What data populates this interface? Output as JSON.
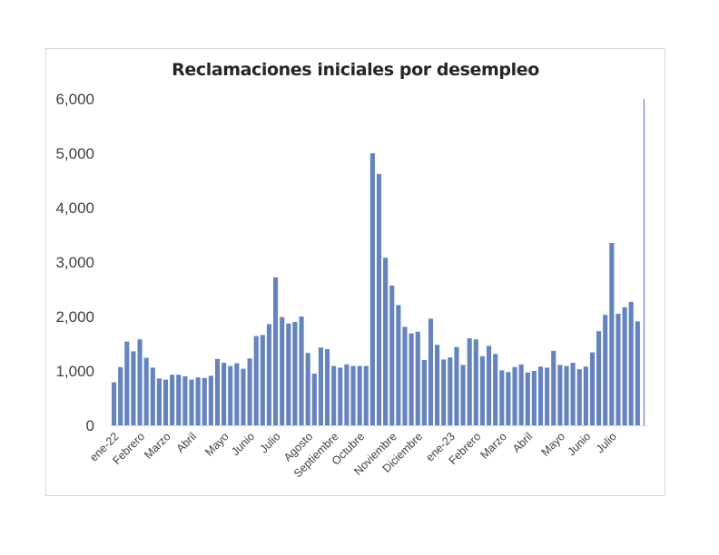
{
  "chart_data": {
    "type": "bar",
    "title": "Reclamaciones iniciales por desempleo",
    "xlabel": "",
    "ylabel": "",
    "ylim": [
      0,
      6000
    ],
    "yticks": [
      "0",
      "1,000",
      "2,000",
      "3,000",
      "4,000",
      "5,000",
      "6,000"
    ],
    "grid": false,
    "legend": "none",
    "bar_color": "#6584be",
    "month_labels": [
      {
        "label": "ene-22",
        "index": 0
      },
      {
        "label": "Febrero",
        "index": 4
      },
      {
        "label": "Marzo",
        "index": 8
      },
      {
        "label": "Abril",
        "index": 12
      },
      {
        "label": "Mayo",
        "index": 17
      },
      {
        "label": "Junio",
        "index": 21
      },
      {
        "label": "Julio",
        "index": 25
      },
      {
        "label": "Agosto",
        "index": 30
      },
      {
        "label": "Septiembre",
        "index": 34
      },
      {
        "label": "Octubre",
        "index": 38
      },
      {
        "label": "Noviembre",
        "index": 43
      },
      {
        "label": "Diciembre",
        "index": 47
      },
      {
        "label": "ene-23",
        "index": 52
      },
      {
        "label": "Febrero",
        "index": 56
      },
      {
        "label": "Marzo",
        "index": 60
      },
      {
        "label": "Abril",
        "index": 64
      },
      {
        "label": "Mayo",
        "index": 69
      },
      {
        "label": "Junio",
        "index": 73
      },
      {
        "label": "Julio",
        "index": 77
      }
    ],
    "values": [
      790,
      1070,
      1540,
      1360,
      1580,
      1240,
      1060,
      860,
      840,
      930,
      930,
      900,
      840,
      880,
      870,
      910,
      1220,
      1150,
      1090,
      1140,
      1040,
      1230,
      1640,
      1660,
      1860,
      2720,
      1990,
      1870,
      1900,
      2000,
      1330,
      950,
      1430,
      1400,
      1090,
      1060,
      1120,
      1090,
      1090,
      1090,
      5000,
      4620,
      3080,
      2570,
      2210,
      1810,
      1690,
      1720,
      1200,
      1960,
      1480,
      1210,
      1250,
      1440,
      1110,
      1600,
      1580,
      1270,
      1460,
      1310,
      1010,
      980,
      1070,
      1120,
      970,
      1000,
      1080,
      1060,
      1370,
      1110,
      1090,
      1150,
      1030,
      1080,
      1340,
      1730,
      2030,
      3350,
      2050,
      2170,
      2270,
      1910,
      6000
    ]
  }
}
